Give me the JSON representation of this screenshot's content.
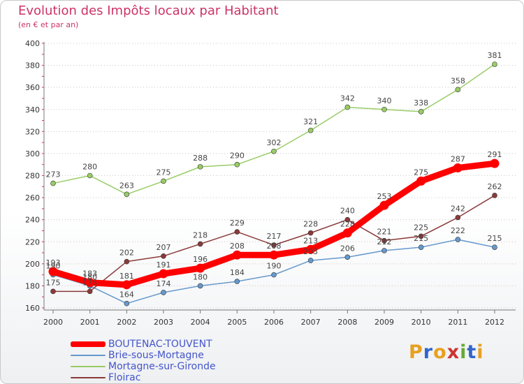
{
  "header": {
    "title": "Evolution des Impôts locaux par Habitant",
    "subtitle": "(en € et par an)"
  },
  "logo": {
    "letters": [
      "P",
      "r",
      "o",
      "x",
      "i",
      "t",
      "i"
    ],
    "colors": [
      "#e8a020",
      "#3366cc",
      "#e8a020",
      "#cc3333",
      "#66aa33",
      "#3366cc",
      "#e8a020"
    ]
  },
  "colors": {
    "title": "#cc3366",
    "legend_text": "#4455cc",
    "axis": "#777777",
    "tick_marks": "#cc3366"
  },
  "chart_data": {
    "type": "line",
    "title": "Evolution des Impôts locaux par Habitant",
    "subtitle": "(en € et par an)",
    "xlabel": "",
    "ylabel": "",
    "x": [
      "2000",
      "2001",
      "2002",
      "2003",
      "2004",
      "2005",
      "2006",
      "2007",
      "2008",
      "2009",
      "2010",
      "2011",
      "2012"
    ],
    "ylim": [
      160,
      400
    ],
    "yticks": [
      160,
      180,
      200,
      220,
      240,
      260,
      280,
      300,
      320,
      340,
      360,
      380,
      400
    ],
    "grid": "horizontal dotted",
    "legend": "bottom-left",
    "series": [
      {
        "name": "BOUTENAC-TOUVENT",
        "color": "#ff0000",
        "emphasis": "thick",
        "values": [
          193,
          183,
          181,
          191,
          196,
          208,
          208,
          213,
          228,
          253,
          275,
          287,
          291
        ]
      },
      {
        "name": "Brie-sous-Mortagne",
        "color": "#6699cc",
        "emphasis": "thin",
        "values": [
          190,
          180,
          164,
          174,
          180,
          184,
          190,
          203,
          206,
          212,
          215,
          222,
          215
        ]
      },
      {
        "name": "Mortagne-sur-Gironde",
        "color": "#99cc66",
        "emphasis": "thin",
        "values": [
          273,
          280,
          263,
          275,
          288,
          290,
          302,
          321,
          342,
          340,
          338,
          358,
          381
        ]
      },
      {
        "name": "Floirac",
        "color": "#8b3a3a",
        "emphasis": "thin",
        "values": [
          175,
          175,
          202,
          207,
          218,
          229,
          217,
          228,
          240,
          221,
          225,
          242,
          262
        ]
      }
    ]
  }
}
